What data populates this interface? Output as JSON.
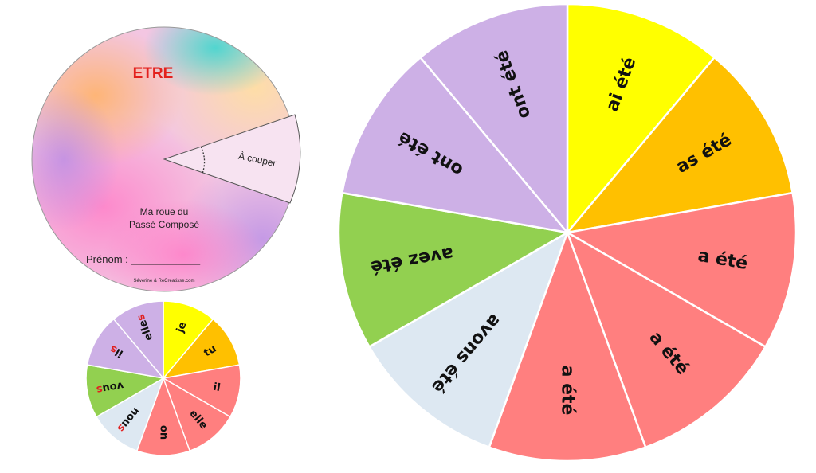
{
  "cover": {
    "title": "ETRE",
    "cut_label": "À couper",
    "wheel_name_line1": "Ma roue du",
    "wheel_name_line2": "Passé Composé",
    "name_label": "Prénom : ____________",
    "credit": "Séverine & ReCreatisse.com"
  },
  "pronoun_wheel": {
    "segments": [
      {
        "label": "je",
        "color": "#ffff00"
      },
      {
        "label": "tu",
        "color": "#ffc000"
      },
      {
        "label": "il",
        "color": "#ff7f7f"
      },
      {
        "label": "elle",
        "color": "#ff7f7f"
      },
      {
        "label": "on",
        "color": "#ff7f7f"
      },
      {
        "label": "nous",
        "color": "#dde8f2"
      },
      {
        "label": "vous",
        "color": "#92d050"
      },
      {
        "label": "ils",
        "color": "#cdb0e6"
      },
      {
        "label": "elles",
        "color": "#cdb0e6"
      }
    ],
    "plural_ending": "s",
    "plural_ending_color": "#e02020"
  },
  "verb_wheel": {
    "segments": [
      {
        "label": "ai été",
        "color": "#ffff00"
      },
      {
        "label": "as été",
        "color": "#ffc000"
      },
      {
        "label": "a été",
        "color": "#ff7f7f"
      },
      {
        "label": "a été",
        "color": "#ff7f7f"
      },
      {
        "label": "a été",
        "color": "#ff7f7f"
      },
      {
        "label": "avons été",
        "color": "#dde8f2"
      },
      {
        "label": "avez été",
        "color": "#92d050"
      },
      {
        "label": "ont été",
        "color": "#cdb0e6"
      },
      {
        "label": "ont été",
        "color": "#cdb0e6"
      }
    ]
  }
}
